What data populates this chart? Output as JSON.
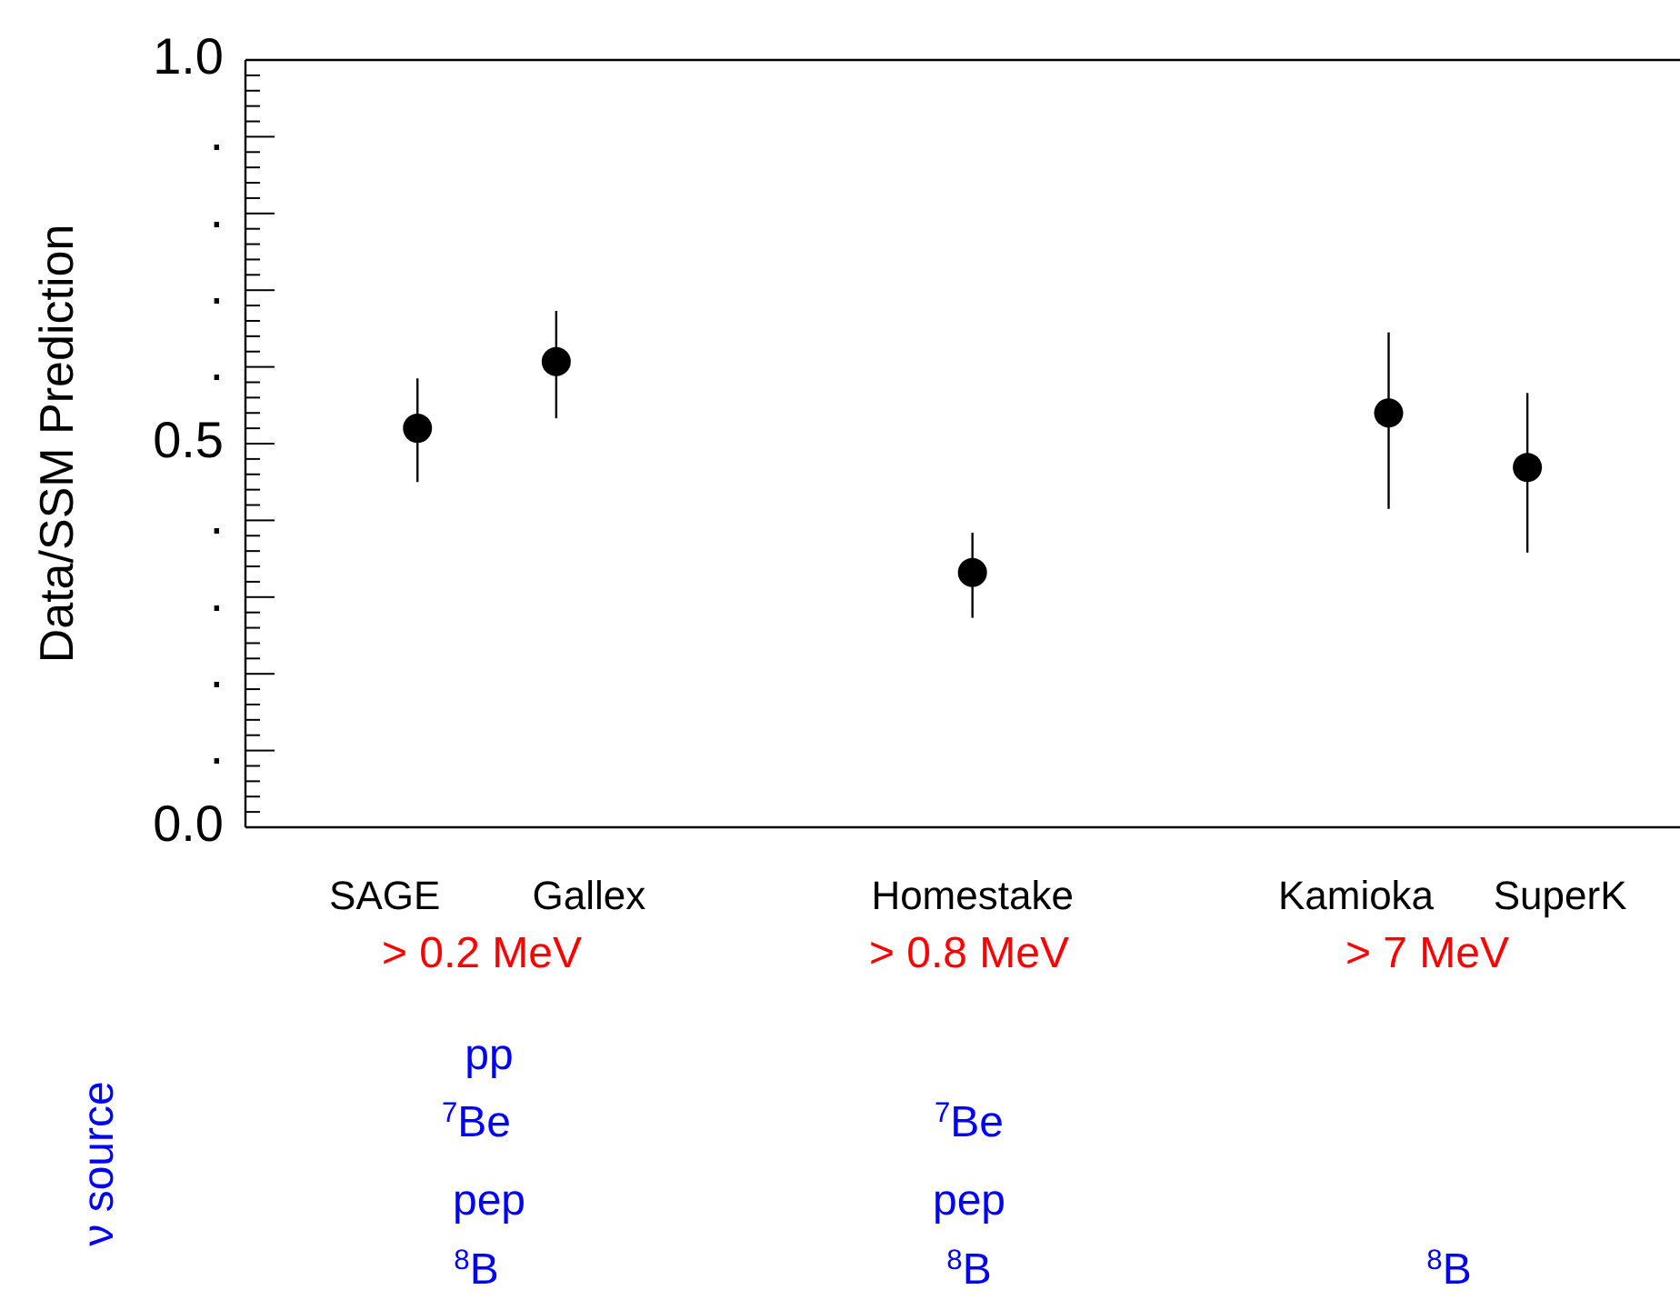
{
  "chart_data": {
    "type": "scatter",
    "ylabel": "Data/SSM Prediction",
    "categories": [
      "SAGE",
      "Gallex",
      null,
      null,
      "Homestake",
      null,
      null,
      "Kamioka",
      "SuperK"
    ],
    "values": [
      0.52,
      0.607,
      null,
      null,
      0.332,
      null,
      null,
      0.54,
      0.469
    ],
    "errors": [
      [
        0.45,
        0.585
      ],
      [
        0.533,
        0.673
      ],
      null,
      null,
      [
        0.273,
        0.384
      ],
      null,
      null,
      [
        0.415,
        0.645
      ],
      [
        0.358,
        0.566
      ]
    ],
    "color": "#000000",
    "marker": "circle",
    "ylim": [
      0,
      1
    ],
    "yticks": [
      {
        "value": 0,
        "label": "0.0"
      },
      {
        "value": 0.1,
        "label": "."
      },
      {
        "value": 0.2,
        "label": "."
      },
      {
        "value": 0.3,
        "label": "."
      },
      {
        "value": 0.4,
        "label": "."
      },
      {
        "value": 0.5,
        "label": "0.5"
      },
      {
        "value": 0.6,
        "label": "."
      },
      {
        "value": 0.7,
        "label": "."
      },
      {
        "value": 0.8,
        "label": "."
      },
      {
        "value": 0.9,
        "label": "."
      },
      {
        "value": 1.0,
        "label": "1.0"
      }
    ],
    "annotations": [
      "> 0.2 MeV",
      "> 0.8 MeV",
      "> 7 MeV",
      "ν source",
      "pp",
      "$^{7}$Be",
      "pep",
      "$^{8}$B",
      "$^{7}$Be",
      "pep",
      "$^{8}$B",
      "$^{8}$B"
    ]
  }
}
